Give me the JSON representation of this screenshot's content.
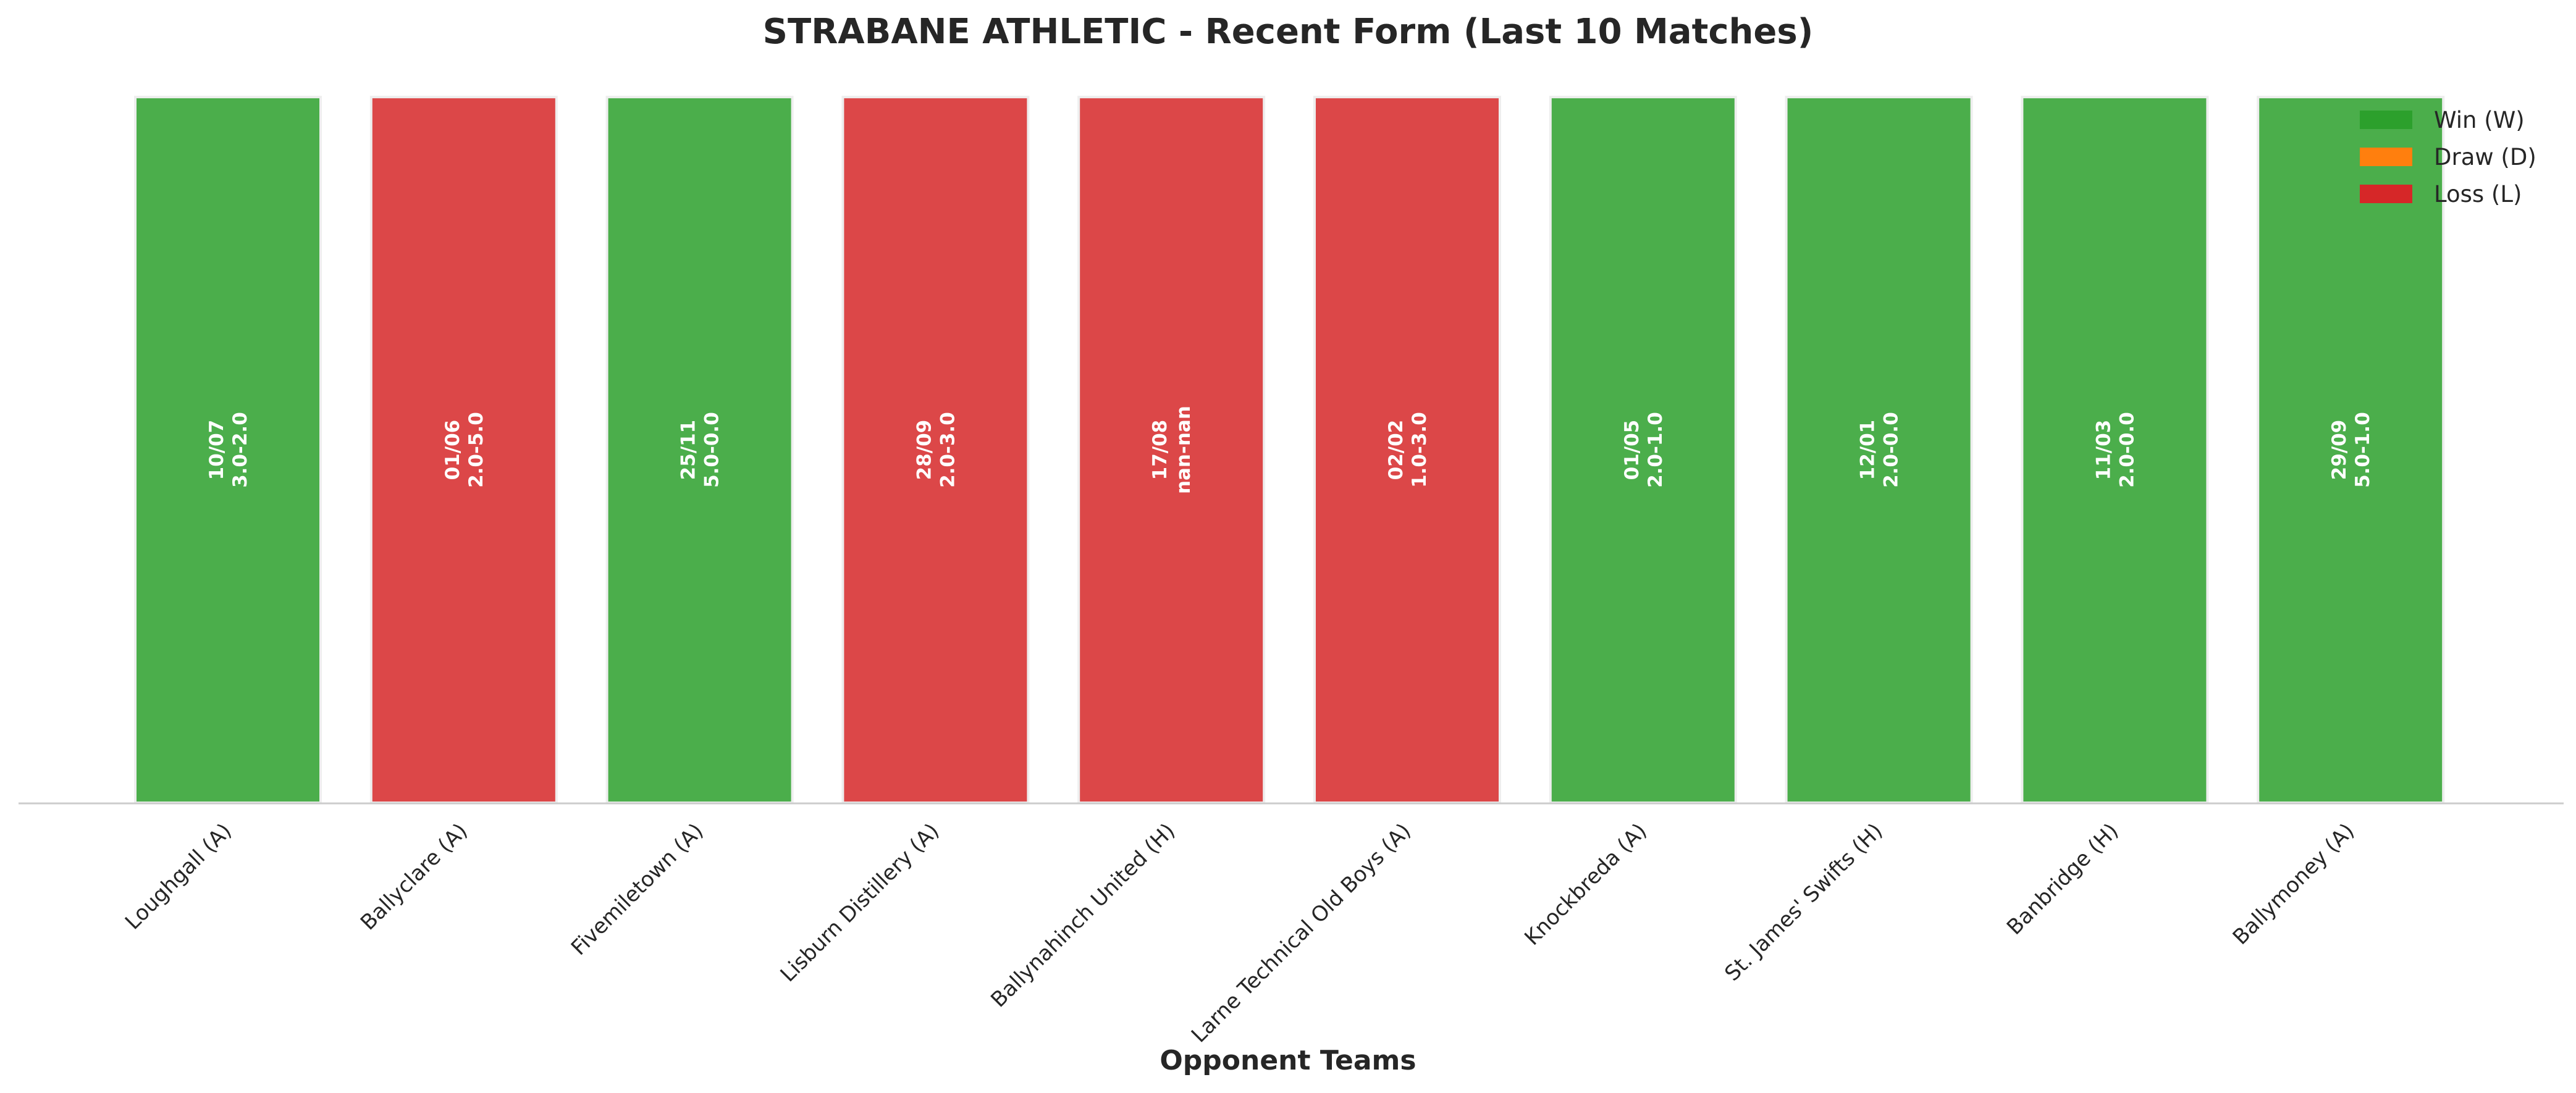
{
  "chart_data": {
    "type": "bar",
    "title": "STRABANE ATHLETIC - Recent Form (Last 10 Matches)",
    "xlabel": "Opponent Teams",
    "ylabel": "",
    "grid": false,
    "legend_position": "top-right",
    "categories": [
      "Loughgall (A)",
      "Ballyclare (A)",
      "Fivemiletown (A)",
      "Lisburn Distillery (A)",
      "Ballynahinch United (H)",
      "Larne Technical Old Boys (A)",
      "Knockbreda (A)",
      "St. James' Swifts (H)",
      "Banbridge (H)",
      "Ballymoney (A)"
    ],
    "values": [
      1,
      1,
      1,
      1,
      1,
      1,
      1,
      1,
      1,
      1
    ],
    "ylim": [
      0,
      1.05
    ],
    "results": [
      "W",
      "L",
      "W",
      "L",
      "L",
      "L",
      "W",
      "W",
      "W",
      "W"
    ],
    "dates": [
      "10/07",
      "01/06",
      "25/11",
      "28/09",
      "17/08",
      "02/02",
      "01/05",
      "12/01",
      "11/03",
      "29/09"
    ],
    "scores": [
      "3.0-2.0",
      "2.0-5.0",
      "5.0-0.0",
      "2.0-3.0",
      "nan-nan",
      "1.0-3.0",
      "2.0-1.0",
      "2.0-0.0",
      "2.0-0.0",
      "5.0-1.0"
    ],
    "legend": [
      {
        "key": "W",
        "label": "Win (W)",
        "color": "#2ca02c"
      },
      {
        "key": "D",
        "label": "Draw (D)",
        "color": "#ff7f0e"
      },
      {
        "key": "L",
        "label": "Loss (L)",
        "color": "#d62728"
      }
    ],
    "colors": {
      "W": "#2ca02c",
      "D": "#ff7f0e",
      "L": "#d62728"
    }
  }
}
